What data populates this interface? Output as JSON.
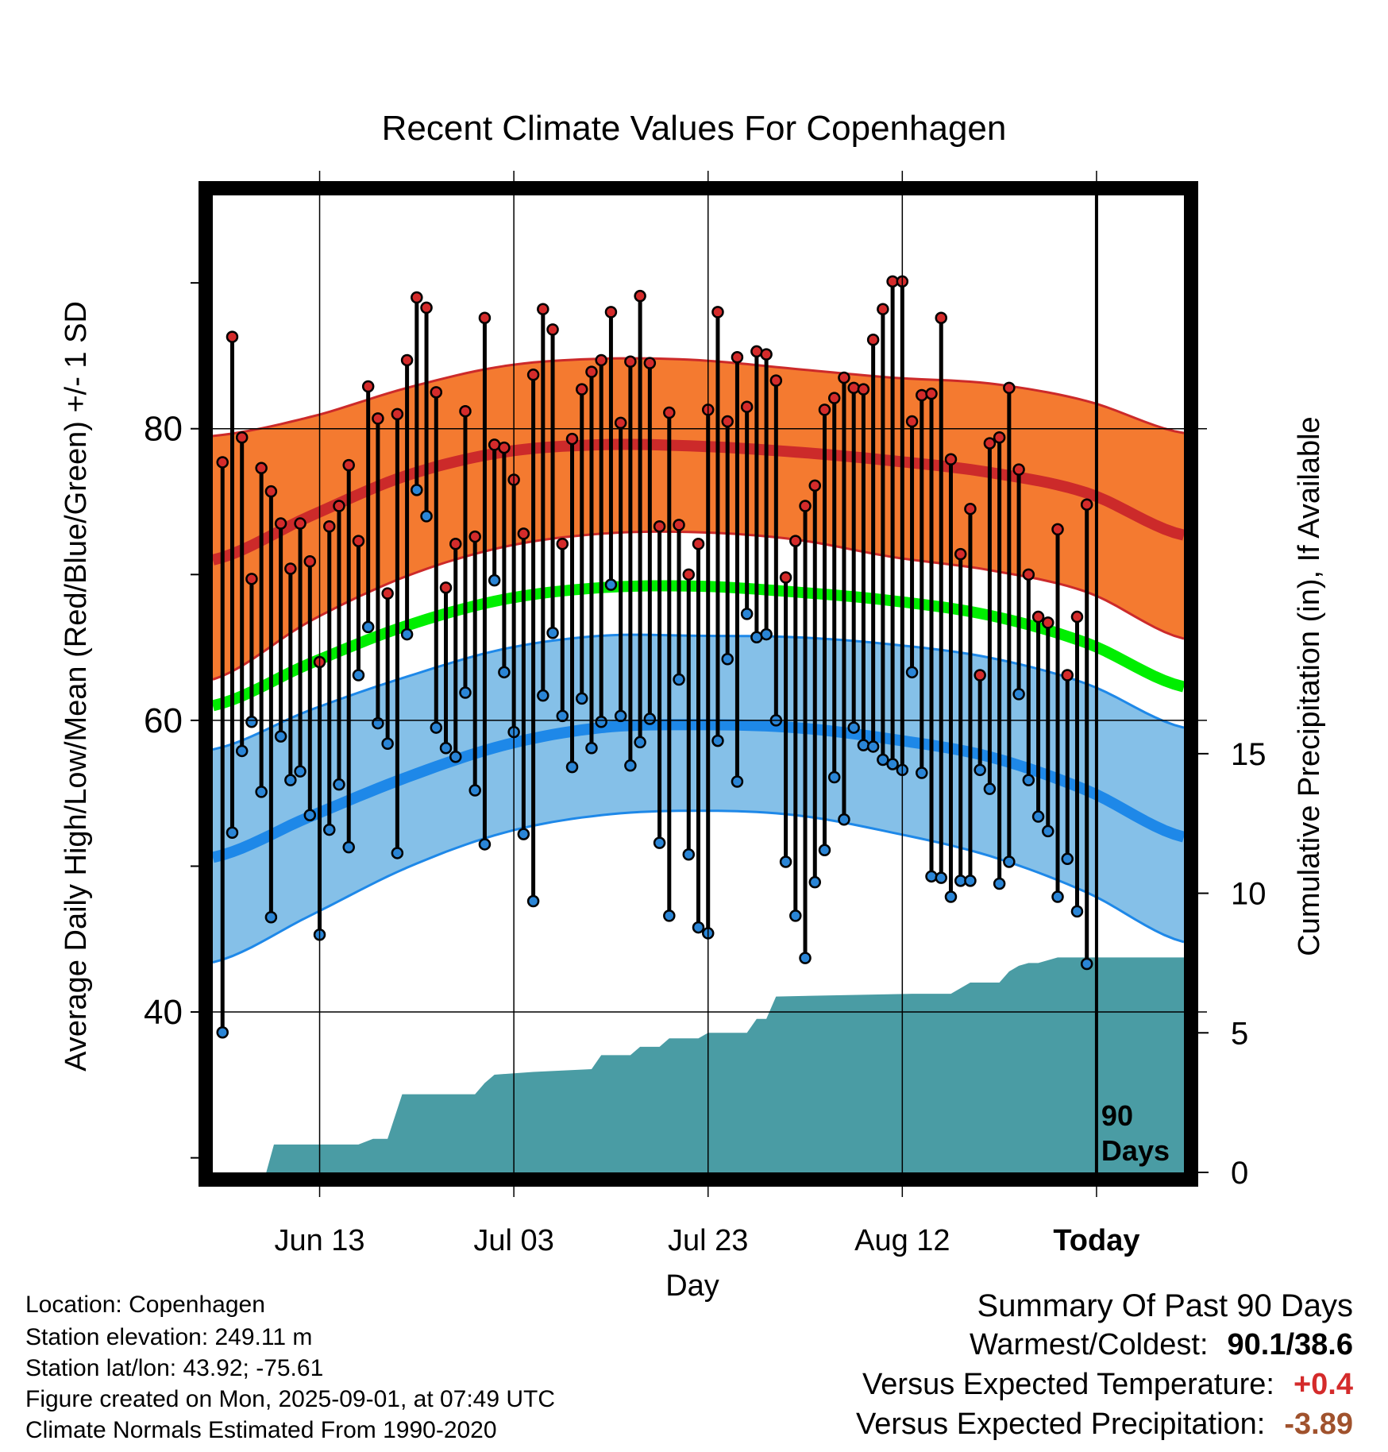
{
  "chart_data": {
    "type": "line",
    "title": "Recent Climate Values For Copenhagen",
    "xlabel": "Day",
    "ylabel_left": "Average Daily High/Low/Mean (Red/Blue/Green) +/- 1 SD",
    "ylabel_right": "Cumulative Precipitation (in), If Available",
    "x_tick_labels": [
      "Jun 13",
      "Jul 03",
      "Jul 23",
      "Aug 12",
      "Today"
    ],
    "x_tick_days": [
      11,
      31,
      51,
      71,
      91
    ],
    "x_range_days": [
      0,
      100
    ],
    "y_left_range": [
      29,
      96
    ],
    "y_left_ticks": [
      40,
      60,
      80
    ],
    "y_left_minor_ticks": [
      30,
      50,
      70,
      90
    ],
    "y_right_range": [
      0,
      35
    ],
    "y_right_ticks": [
      0,
      5,
      10,
      15
    ],
    "grid": true,
    "today_line_label": "90\nDays",
    "normals_days": [
      0,
      10,
      20,
      30,
      40,
      50,
      60,
      70,
      80,
      90,
      100
    ],
    "normal_high_mean": [
      71.0,
      74.0,
      76.8,
      78.4,
      78.9,
      78.8,
      78.4,
      77.8,
      77.0,
      75.6,
      72.7
    ],
    "normal_high_plus_sd": [
      79.5,
      80.8,
      82.8,
      84.3,
      84.8,
      84.7,
      84.1,
      83.5,
      83.1,
      81.9,
      79.7
    ],
    "normal_high_minus_sd": [
      62.8,
      66.8,
      69.9,
      71.9,
      72.8,
      72.9,
      72.4,
      71.2,
      70.3,
      68.8,
      65.6
    ],
    "normal_mean": [
      61.0,
      63.9,
      66.5,
      68.3,
      69.1,
      69.2,
      68.8,
      68.2,
      67.2,
      65.3,
      62.3
    ],
    "normal_low_mean": [
      50.6,
      53.4,
      56.1,
      58.3,
      59.5,
      59.7,
      59.5,
      58.7,
      57.5,
      55.2,
      52.0
    ],
    "normal_low_plus_sd": [
      58.0,
      60.7,
      63.0,
      64.9,
      65.8,
      65.8,
      65.7,
      65.2,
      64.3,
      62.5,
      59.5
    ],
    "normal_low_minus_sd": [
      43.4,
      46.6,
      49.9,
      52.3,
      53.5,
      53.8,
      53.5,
      52.3,
      50.7,
      48.2,
      44.8
    ],
    "series": [
      {
        "name": "Daily High",
        "color": "#d42b2b",
        "values": [
          77.7,
          86.3,
          79.4,
          69.7,
          77.3,
          75.7,
          73.5,
          70.4,
          73.5,
          70.9,
          64.0,
          73.3,
          74.7,
          77.5,
          72.3,
          82.9,
          80.7,
          68.7,
          81.0,
          84.7,
          89.0,
          88.3,
          82.5,
          69.1,
          72.1,
          81.2,
          72.6,
          87.6,
          78.9,
          78.7,
          76.5,
          72.8,
          83.7,
          88.2,
          86.8,
          72.1,
          79.3,
          82.7,
          83.9,
          84.7,
          88.0,
          80.4,
          84.6,
          89.1,
          84.5,
          73.3,
          81.1,
          73.4,
          70.0,
          72.1,
          81.3,
          88.0,
          80.5,
          84.9,
          81.5,
          85.3,
          85.1,
          83.3,
          69.8,
          72.3,
          74.7,
          76.1,
          81.3,
          82.1,
          83.5,
          82.8,
          82.7,
          86.1,
          88.2,
          90.1,
          90.1,
          80.5,
          82.3,
          82.4,
          87.6,
          77.9,
          71.4,
          74.5,
          63.1,
          79.0,
          79.4,
          82.8,
          77.2,
          70.0,
          67.1,
          66.7,
          73.1,
          63.1,
          67.1,
          74.8
        ]
      },
      {
        "name": "Daily Low",
        "color": "#2a85d6",
        "values": [
          38.6,
          52.3,
          57.9,
          59.9,
          55.1,
          46.5,
          58.9,
          55.9,
          56.5,
          53.5,
          45.3,
          52.5,
          55.6,
          51.3,
          63.1,
          66.4,
          59.8,
          58.4,
          50.9,
          65.9,
          75.8,
          74.0,
          59.5,
          58.1,
          57.5,
          61.9,
          55.2,
          51.5,
          69.6,
          63.3,
          59.2,
          52.2,
          47.6,
          61.7,
          66.0,
          60.3,
          56.8,
          61.5,
          58.1,
          59.9,
          69.3,
          60.3,
          56.9,
          58.5,
          60.1,
          51.6,
          46.6,
          62.8,
          50.8,
          45.8,
          45.4,
          58.6,
          64.2,
          55.8,
          67.3,
          65.7,
          65.9,
          60.0,
          50.3,
          46.6,
          43.7,
          48.9,
          51.1,
          56.1,
          53.2,
          59.5,
          58.3,
          58.2,
          57.3,
          57.0,
          56.6,
          63.3,
          56.4,
          49.3,
          49.2,
          47.9,
          49.0,
          49.0,
          56.6,
          55.3,
          48.8,
          50.3,
          61.8,
          55.9,
          53.4,
          52.4,
          47.9,
          50.5,
          46.9,
          43.3
        ]
      },
      {
        "name": "Cumulative Precipitation",
        "color": "#4a9ca4",
        "days": [
          0,
          5.5,
          6.3,
          15,
          16.5,
          18,
          19.5,
          20,
          27,
          28,
          29,
          33,
          39,
          40,
          43,
          44,
          46,
          47,
          50,
          51,
          55,
          56,
          57,
          58,
          72,
          76,
          78,
          81,
          82,
          83,
          84,
          85,
          87,
          88,
          100
        ],
        "values": [
          0,
          0,
          1.0,
          1.0,
          1.2,
          1.2,
          2.8,
          2.8,
          2.8,
          3.2,
          3.5,
          3.6,
          3.7,
          4.2,
          4.2,
          4.5,
          4.5,
          4.8,
          4.8,
          5.0,
          5.0,
          5.5,
          5.5,
          6.3,
          6.4,
          6.4,
          6.8,
          6.8,
          7.2,
          7.4,
          7.5,
          7.5,
          7.7,
          7.7,
          7.7
        ]
      }
    ]
  },
  "info": {
    "location": "Location: Copenhagen",
    "elevation": "Station elevation: 249.11 m",
    "latlon": "Station lat/lon: 43.92; -75.61",
    "created": "Figure created on Mon, 2025-09-01, at 07:49 UTC",
    "normals": "Climate Normals Estimated From 1990-2020"
  },
  "summary": {
    "header": "Summary Of Past 90 Days",
    "warm_cold_label": "Warmest/Coldest:",
    "warm_cold_value": "90.1/38.6",
    "temp_label": "Versus Expected Temperature:",
    "temp_value": "+0.4",
    "temp_color": "#d42b2b",
    "precip_label": "Versus Expected Precipitation:",
    "precip_value": "-3.89",
    "precip_color": "#a0522d"
  },
  "colors": {
    "high_band": "#f47a30",
    "high_line": "#cc2a2a",
    "mean_line": "#00ee00",
    "low_band": "#85c0e8",
    "low_line": "#1e88e8",
    "precip_fill": "#4a9ca4"
  }
}
